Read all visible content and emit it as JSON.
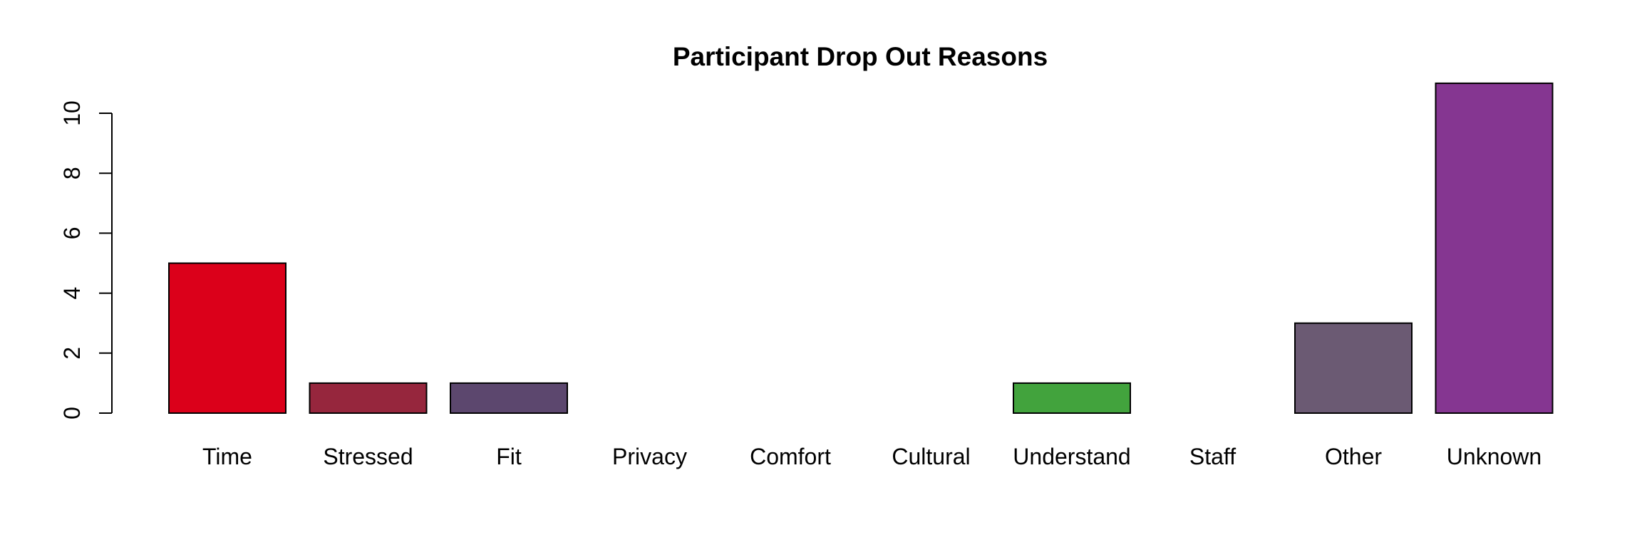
{
  "chart_data": {
    "type": "bar",
    "title": "Participant Drop Out Reasons",
    "xlabel": "",
    "ylabel": "",
    "ylim": [
      0,
      11
    ],
    "yticks": [
      0,
      2,
      4,
      6,
      8,
      10
    ],
    "grid": false,
    "categories": [
      "Time",
      "Stressed",
      "Fit",
      "Privacy",
      "Comfort",
      "Cultural",
      "Understand",
      "Staff",
      "Other",
      "Unknown"
    ],
    "values": [
      5,
      1,
      1,
      0,
      0,
      0,
      1,
      0,
      3,
      11
    ],
    "colors": [
      "#DB001A",
      "#96263D",
      "#5C476E",
      "#5C476E",
      "#5C476E",
      "#5C476E",
      "#42A33D",
      "#5C476E",
      "#6B5A73",
      "#853691"
    ]
  }
}
